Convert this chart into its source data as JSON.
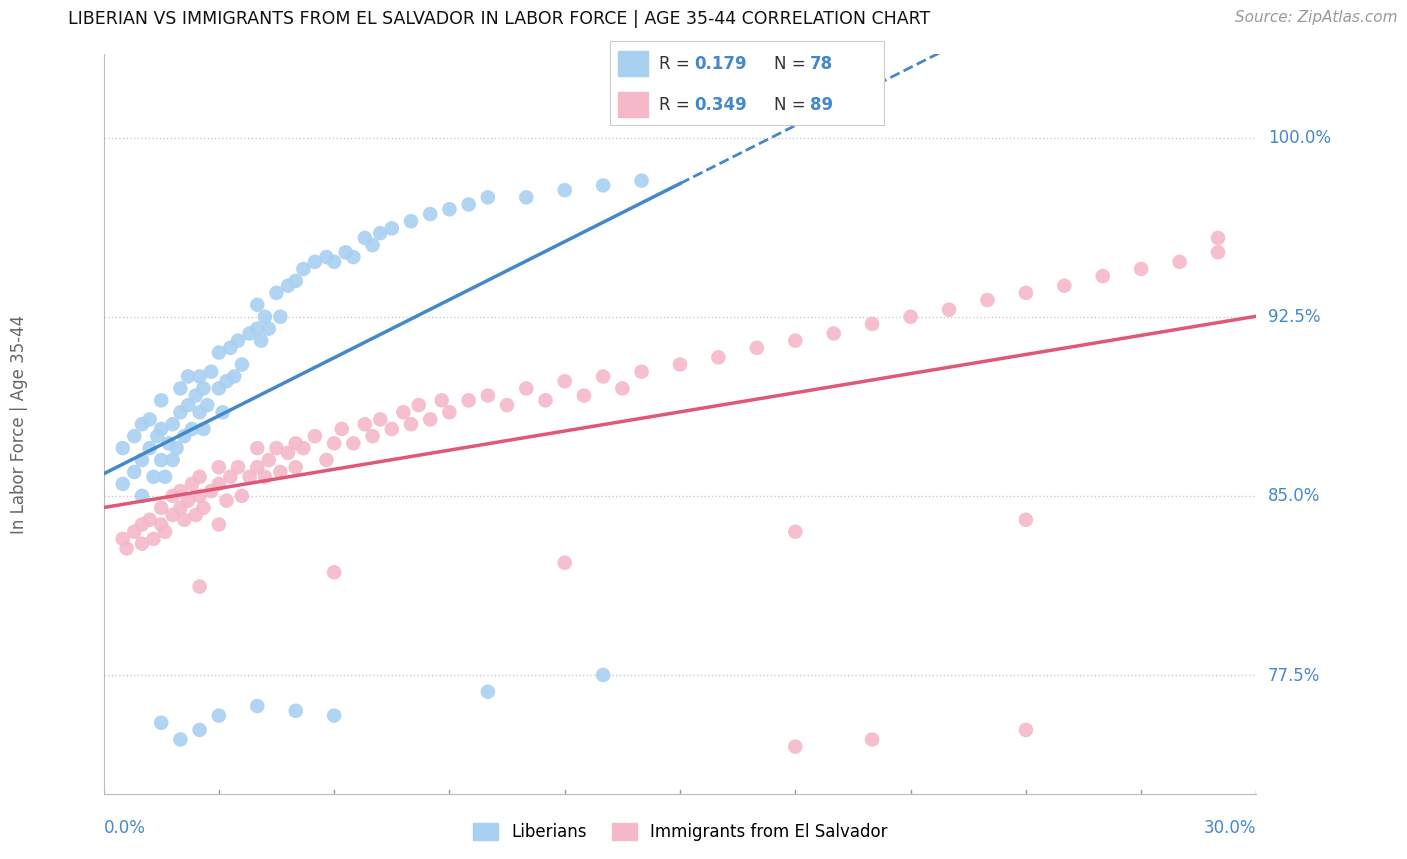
{
  "title": "LIBERIAN VS IMMIGRANTS FROM EL SALVADOR IN LABOR FORCE | AGE 35-44 CORRELATION CHART",
  "source": "Source: ZipAtlas.com",
  "ylabel_label": "In Labor Force | Age 35-44",
  "legend_blue_r": "0.179",
  "legend_blue_n": "78",
  "legend_pink_r": "0.349",
  "legend_pink_n": "89",
  "blue_color": "#a8d0f0",
  "pink_color": "#f5b8c8",
  "blue_line_color": "#4488cc",
  "pink_line_color": "#e05878",
  "xmin": 0.0,
  "xmax": 0.3,
  "ymin": 0.725,
  "ymax": 1.035,
  "yticks": [
    0.775,
    0.85,
    0.925,
    1.0
  ],
  "ytick_labels": [
    "77.5%",
    "85.0%",
    "92.5%",
    "100.0%"
  ],
  "blue_scatter_x": [
    0.005,
    0.005,
    0.008,
    0.008,
    0.01,
    0.01,
    0.01,
    0.012,
    0.012,
    0.013,
    0.014,
    0.015,
    0.015,
    0.015,
    0.016,
    0.017,
    0.018,
    0.018,
    0.019,
    0.02,
    0.02,
    0.021,
    0.022,
    0.022,
    0.023,
    0.024,
    0.025,
    0.025,
    0.026,
    0.026,
    0.027,
    0.028,
    0.03,
    0.03,
    0.031,
    0.032,
    0.033,
    0.034,
    0.035,
    0.036,
    0.038,
    0.04,
    0.04,
    0.041,
    0.042,
    0.043,
    0.045,
    0.046,
    0.048,
    0.05,
    0.052,
    0.055,
    0.058,
    0.06,
    0.063,
    0.065,
    0.068,
    0.07,
    0.072,
    0.075,
    0.08,
    0.085,
    0.09,
    0.095,
    0.1,
    0.11,
    0.12,
    0.13,
    0.14,
    0.015,
    0.02,
    0.025,
    0.03,
    0.04,
    0.05,
    0.06,
    0.1,
    0.13
  ],
  "blue_scatter_y": [
    0.855,
    0.87,
    0.86,
    0.875,
    0.85,
    0.865,
    0.88,
    0.87,
    0.882,
    0.858,
    0.875,
    0.865,
    0.878,
    0.89,
    0.858,
    0.872,
    0.865,
    0.88,
    0.87,
    0.885,
    0.895,
    0.875,
    0.888,
    0.9,
    0.878,
    0.892,
    0.885,
    0.9,
    0.878,
    0.895,
    0.888,
    0.902,
    0.895,
    0.91,
    0.885,
    0.898,
    0.912,
    0.9,
    0.915,
    0.905,
    0.918,
    0.92,
    0.93,
    0.915,
    0.925,
    0.92,
    0.935,
    0.925,
    0.938,
    0.94,
    0.945,
    0.948,
    0.95,
    0.948,
    0.952,
    0.95,
    0.958,
    0.955,
    0.96,
    0.962,
    0.965,
    0.968,
    0.97,
    0.972,
    0.975,
    0.975,
    0.978,
    0.98,
    0.982,
    0.755,
    0.748,
    0.752,
    0.758,
    0.762,
    0.76,
    0.758,
    0.768,
    0.775
  ],
  "pink_scatter_x": [
    0.005,
    0.006,
    0.008,
    0.01,
    0.01,
    0.012,
    0.013,
    0.015,
    0.015,
    0.016,
    0.018,
    0.018,
    0.02,
    0.02,
    0.021,
    0.022,
    0.023,
    0.024,
    0.025,
    0.025,
    0.026,
    0.028,
    0.03,
    0.03,
    0.032,
    0.033,
    0.035,
    0.036,
    0.038,
    0.04,
    0.04,
    0.042,
    0.043,
    0.045,
    0.046,
    0.048,
    0.05,
    0.05,
    0.052,
    0.055,
    0.058,
    0.06,
    0.062,
    0.065,
    0.068,
    0.07,
    0.072,
    0.075,
    0.078,
    0.08,
    0.082,
    0.085,
    0.088,
    0.09,
    0.095,
    0.1,
    0.105,
    0.11,
    0.115,
    0.12,
    0.125,
    0.13,
    0.135,
    0.14,
    0.15,
    0.16,
    0.17,
    0.18,
    0.19,
    0.2,
    0.21,
    0.22,
    0.23,
    0.24,
    0.25,
    0.26,
    0.27,
    0.28,
    0.29,
    0.03,
    0.06,
    0.12,
    0.18,
    0.24,
    0.025,
    0.18,
    0.2,
    0.24,
    0.29
  ],
  "pink_scatter_y": [
    0.832,
    0.828,
    0.835,
    0.838,
    0.83,
    0.84,
    0.832,
    0.838,
    0.845,
    0.835,
    0.842,
    0.85,
    0.845,
    0.852,
    0.84,
    0.848,
    0.855,
    0.842,
    0.85,
    0.858,
    0.845,
    0.852,
    0.855,
    0.862,
    0.848,
    0.858,
    0.862,
    0.85,
    0.858,
    0.862,
    0.87,
    0.858,
    0.865,
    0.87,
    0.86,
    0.868,
    0.872,
    0.862,
    0.87,
    0.875,
    0.865,
    0.872,
    0.878,
    0.872,
    0.88,
    0.875,
    0.882,
    0.878,
    0.885,
    0.88,
    0.888,
    0.882,
    0.89,
    0.885,
    0.89,
    0.892,
    0.888,
    0.895,
    0.89,
    0.898,
    0.892,
    0.9,
    0.895,
    0.902,
    0.905,
    0.908,
    0.912,
    0.915,
    0.918,
    0.922,
    0.925,
    0.928,
    0.932,
    0.935,
    0.938,
    0.942,
    0.945,
    0.948,
    0.952,
    0.838,
    0.818,
    0.822,
    0.835,
    0.84,
    0.812,
    0.745,
    0.748,
    0.752,
    0.958
  ]
}
